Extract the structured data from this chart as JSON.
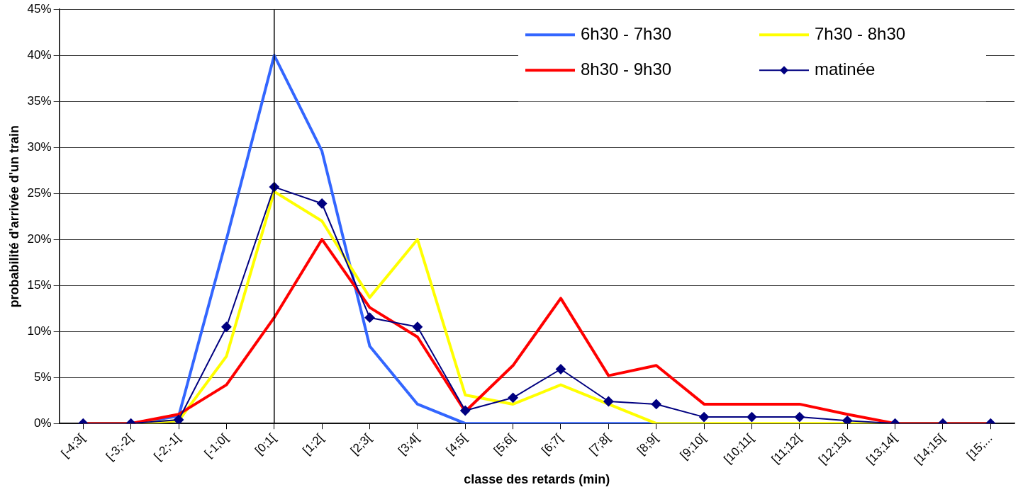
{
  "chart_data": {
    "type": "line",
    "xlabel": "classe des retards (min)",
    "ylabel": "probabilité d'arrivée d'un train",
    "categories": [
      "[-4;3[",
      "[-3;-2[",
      "[-2;-1[",
      "[-1;0[",
      "[0;1[",
      "[1;2[",
      "[2;3[",
      "[3;4[",
      "[4;5[",
      "[5;6[",
      "[6;7[",
      "[7;8[",
      "[8;9[",
      "[9;10[",
      "[10;11[",
      "[11;12[",
      "[12;13[",
      "[13;14[",
      "[14;15[",
      "[15;..."
    ],
    "series": [
      {
        "name": "6h30 - 7h30",
        "color": "#3366ff",
        "marker": "none",
        "values": [
          0,
          0,
          0.8,
          20,
          40,
          29.6,
          8.4,
          2.1,
          0,
          0,
          0,
          0,
          0,
          0,
          null,
          null,
          null,
          null,
          null,
          null
        ]
      },
      {
        "name": "7h30 - 8h30",
        "color": "#ffff00",
        "marker": "none",
        "values": [
          0,
          0,
          0.3,
          7.3,
          25.2,
          22,
          13.7,
          20,
          3.1,
          2.1,
          4.2,
          2.1,
          0,
          0,
          0,
          0,
          0,
          0,
          0,
          0
        ]
      },
      {
        "name": "8h30 - 9h30",
        "color": "#ff0000",
        "marker": "none",
        "values": [
          0,
          0,
          1,
          4.2,
          11.5,
          20,
          12.6,
          9.4,
          1.3,
          6.3,
          13.6,
          5.2,
          6.3,
          2.1,
          2.1,
          2.1,
          1,
          0,
          0,
          0
        ]
      },
      {
        "name": "matinée",
        "color": "#000080",
        "marker": "diamond",
        "values": [
          0,
          0,
          0.4,
          10.5,
          25.7,
          23.9,
          11.5,
          10.5,
          1.4,
          2.8,
          5.9,
          2.4,
          2.1,
          0.7,
          0.7,
          0.7,
          0.3,
          0,
          0,
          0
        ]
      }
    ],
    "ylim": [
      0,
      45
    ],
    "yticks": [
      {
        "value": 0,
        "label": "0%"
      },
      {
        "value": 5,
        "label": "5%"
      },
      {
        "value": 10,
        "label": "10%"
      },
      {
        "value": 15,
        "label": "15%"
      },
      {
        "value": 20,
        "label": "20%"
      },
      {
        "value": 25,
        "label": "25%"
      },
      {
        "value": 30,
        "label": "30%"
      },
      {
        "value": 35,
        "label": "35%"
      },
      {
        "value": 40,
        "label": "40%"
      },
      {
        "value": 45,
        "label": "45%"
      }
    ],
    "ref_lines": [
      {
        "axis": "x",
        "value": "[0;1[",
        "color": "#000000"
      }
    ],
    "grid": "y",
    "legend": "top right"
  }
}
